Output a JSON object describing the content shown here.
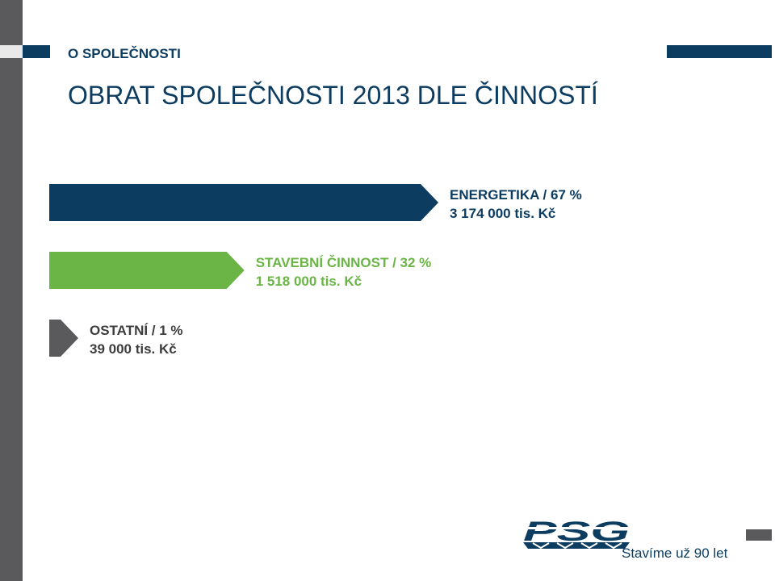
{
  "header": {
    "section_label": "O SPOLEČNOSTI",
    "title": "OBRAT SPOLEČNOSTI 2013 DLE ČINNOSTÍ"
  },
  "chart_data": {
    "type": "bar",
    "orientation": "horizontal",
    "title": "OBRAT SPOLEČNOSTI 2013 DLE ČINNOSTÍ",
    "unit": "tis. Kč",
    "categories": [
      "ENERGETIKA",
      "STAVEBNÍ ČINNOST",
      "OSTATNÍ"
    ],
    "percent": [
      67,
      32,
      1
    ],
    "values": [
      3174000,
      1518000,
      39000
    ],
    "labels": [
      {
        "name_pct": "ENERGETIKA  / 67 %",
        "amount": "3 174 000 tis. Kč"
      },
      {
        "name_pct": "STAVEBNÍ ČINNOST / 32 %",
        "amount": "1 518 000 tis. Kč"
      },
      {
        "name_pct": "OSTATNÍ / 1 %",
        "amount": "39 000 tis. Kč"
      }
    ],
    "colors": [
      "#0c3d61",
      "#6ab546",
      "#5a5a5c"
    ],
    "label_colors": [
      "#0c3d61",
      "#6ab546",
      "#3d3d3f"
    ]
  },
  "footer": {
    "logo_text": "PSG",
    "tagline": "Stavíme už 90 let"
  },
  "colors": {
    "brand_blue": "#0c3d61",
    "green": "#6ab546",
    "gray": "#5a5a5c"
  }
}
